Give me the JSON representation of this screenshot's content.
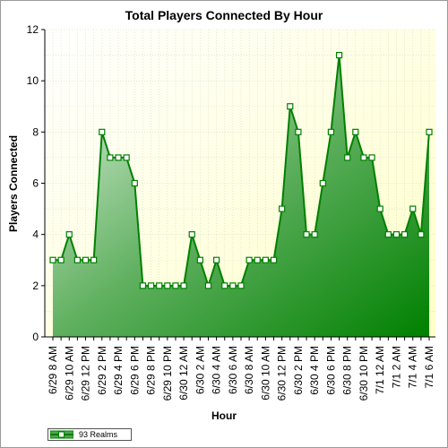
{
  "chart_data": {
    "type": "area",
    "title": "Total Players Connected By Hour",
    "xlabel": "Hour",
    "ylabel": "Players Connected",
    "ylim": [
      0,
      12
    ],
    "yticks": [
      0,
      2,
      4,
      6,
      8,
      10,
      12
    ],
    "grid": true,
    "legend_position": "bottom-left",
    "x_tick_labels": [
      "6/29 8 AM",
      "6/29 10 AM",
      "6/29 12 PM",
      "6/29 2 PM",
      "6/29 4 PM",
      "6/29 6 PM",
      "6/29 8 PM",
      "6/29 10 PM",
      "6/30 12 AM",
      "6/30 2 AM",
      "6/30 4 AM",
      "6/30 6 AM",
      "6/30 8 AM",
      "6/30 10 AM",
      "6/30 12 PM",
      "6/30 2 PM",
      "6/30 4 PM",
      "6/30 6 PM",
      "6/30 8 PM",
      "6/30 10 PM",
      "7/1 12 AM",
      "7/1 2 AM",
      "7/1 4 AM",
      "7/1 6 AM"
    ],
    "series": [
      {
        "name": "93 Realms",
        "color": "#008000",
        "values": [
          3,
          3,
          4,
          3,
          3,
          3,
          8,
          7,
          7,
          7,
          6,
          2,
          2,
          2,
          2,
          2,
          2,
          4,
          3,
          2,
          3,
          2,
          2,
          2,
          3,
          3,
          3,
          3,
          5,
          9,
          8,
          4,
          4,
          6,
          8,
          11,
          7,
          8,
          7,
          7,
          5,
          4,
          4,
          4,
          5,
          4,
          8
        ]
      }
    ]
  }
}
